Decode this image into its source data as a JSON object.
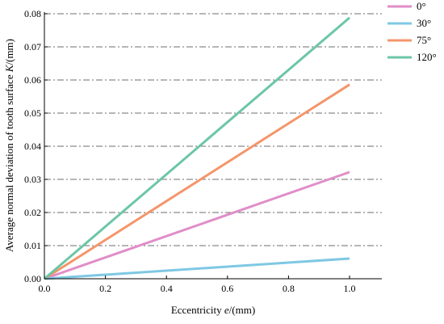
{
  "chart_data": {
    "type": "line",
    "xlabel_prefix": "Eccentricity ",
    "xlabel_var": "e",
    "xlabel_suffix": "/(mm)",
    "ylabel_prefix": "Average normal deviation of tooth surface ",
    "ylabel_var": "K",
    "ylabel_suffix": "/(mm)",
    "xlim": [
      0.0,
      1.0
    ],
    "ylim": [
      0.0,
      0.08
    ],
    "xticks": [
      "0.0",
      "0.2",
      "0.4",
      "0.6",
      "0.8",
      "1.0"
    ],
    "yticks": [
      "0.00",
      "0.01",
      "0.02",
      "0.03",
      "0.04",
      "0.05",
      "0.06",
      "0.07",
      "0.08"
    ],
    "grid": "horizontal dash-dot",
    "legend_position": "top-right outside",
    "series": [
      {
        "name": "0°",
        "color": "#e08ec8",
        "x": [
          0.0,
          1.0
        ],
        "y": [
          0.0,
          0.0322
        ]
      },
      {
        "name": "30°",
        "color": "#7ec8e3",
        "x": [
          0.0,
          1.0
        ],
        "y": [
          0.0,
          0.0061
        ]
      },
      {
        "name": "75°",
        "color": "#f4956a",
        "x": [
          0.0,
          1.0
        ],
        "y": [
          0.0,
          0.0586
        ]
      },
      {
        "name": "120°",
        "color": "#6cc6a6",
        "x": [
          0.0,
          1.0
        ],
        "y": [
          0.0,
          0.0788
        ]
      }
    ]
  }
}
